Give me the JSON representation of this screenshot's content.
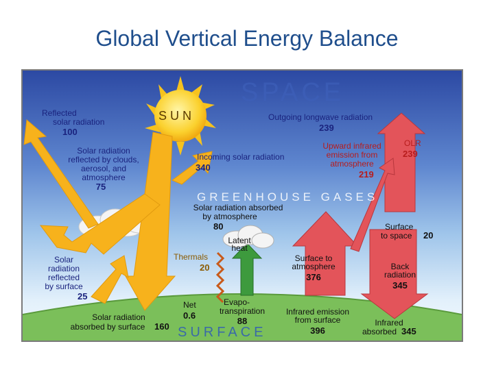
{
  "slide": {
    "title": "Global Vertical Energy Balance"
  },
  "diagram": {
    "space": "SPACE",
    "sun": "SUN",
    "greenhouse": "GREENHOUSE GASES",
    "surface": "SURFACE",
    "latent_heat": [
      "Latent",
      "heat"
    ]
  },
  "flows": {
    "reflected_solar": {
      "lines": [
        "Reflected",
        "solar radiation"
      ],
      "value": "100"
    },
    "reflected_clouds": {
      "lines": [
        "Solar radiation",
        "reflected by clouds,",
        "aerosol, and",
        "atmosphere"
      ],
      "value": "75"
    },
    "incoming_solar": {
      "lines": [
        "Incoming solar radiation"
      ],
      "value": "340"
    },
    "outgoing_longwave": {
      "lines": [
        "Outgoing longwave radiation"
      ],
      "value": "239"
    },
    "upward_infrared": {
      "lines": [
        "Upward infrared",
        "emission from",
        "atmosphere"
      ],
      "value": "219"
    },
    "olr": {
      "lines": [
        "OLR"
      ],
      "value": "239"
    },
    "absorbed_atmosphere": {
      "lines": [
        "Solar radiation absorbed",
        "by atmosphere"
      ],
      "value": "80"
    },
    "surface_to_space": {
      "lines": [
        "Surface",
        "to space"
      ],
      "value": "20"
    },
    "reflected_surface": {
      "lines": [
        "Solar",
        "radiation",
        "reflected",
        "by surface"
      ],
      "value": "25"
    },
    "thermals": {
      "lines": [
        "Thermals"
      ],
      "value": "20"
    },
    "surface_to_atmosphere": {
      "lines": [
        "Surface to",
        "atmosphere"
      ],
      "value": "376"
    },
    "back_radiation": {
      "lines": [
        "Back",
        "radiation"
      ],
      "value": "345"
    },
    "net": {
      "lines": [
        "Net"
      ],
      "value": "0.6"
    },
    "evapotranspiration": {
      "lines": [
        "Evapo-",
        "transpiration"
      ],
      "value": "88"
    },
    "infrared_surface": {
      "lines": [
        "Infrared emission",
        "from surface"
      ],
      "value": "396"
    },
    "absorbed_surface": {
      "lines": [
        "Solar radiation",
        "absorbed by surface"
      ],
      "value": "160"
    },
    "infrared_absorbed": {
      "lines": [
        "Infrared",
        "absorbed"
      ],
      "value": "345"
    }
  },
  "colors": {
    "title": "#1f4e8c",
    "solar_arrow": "#f7b21c",
    "infrared_arrow": "#e3545a",
    "latent_arrow": "#3d9a3d",
    "ground": "#7bbf5a",
    "sky_top": "#2f4fa8"
  }
}
